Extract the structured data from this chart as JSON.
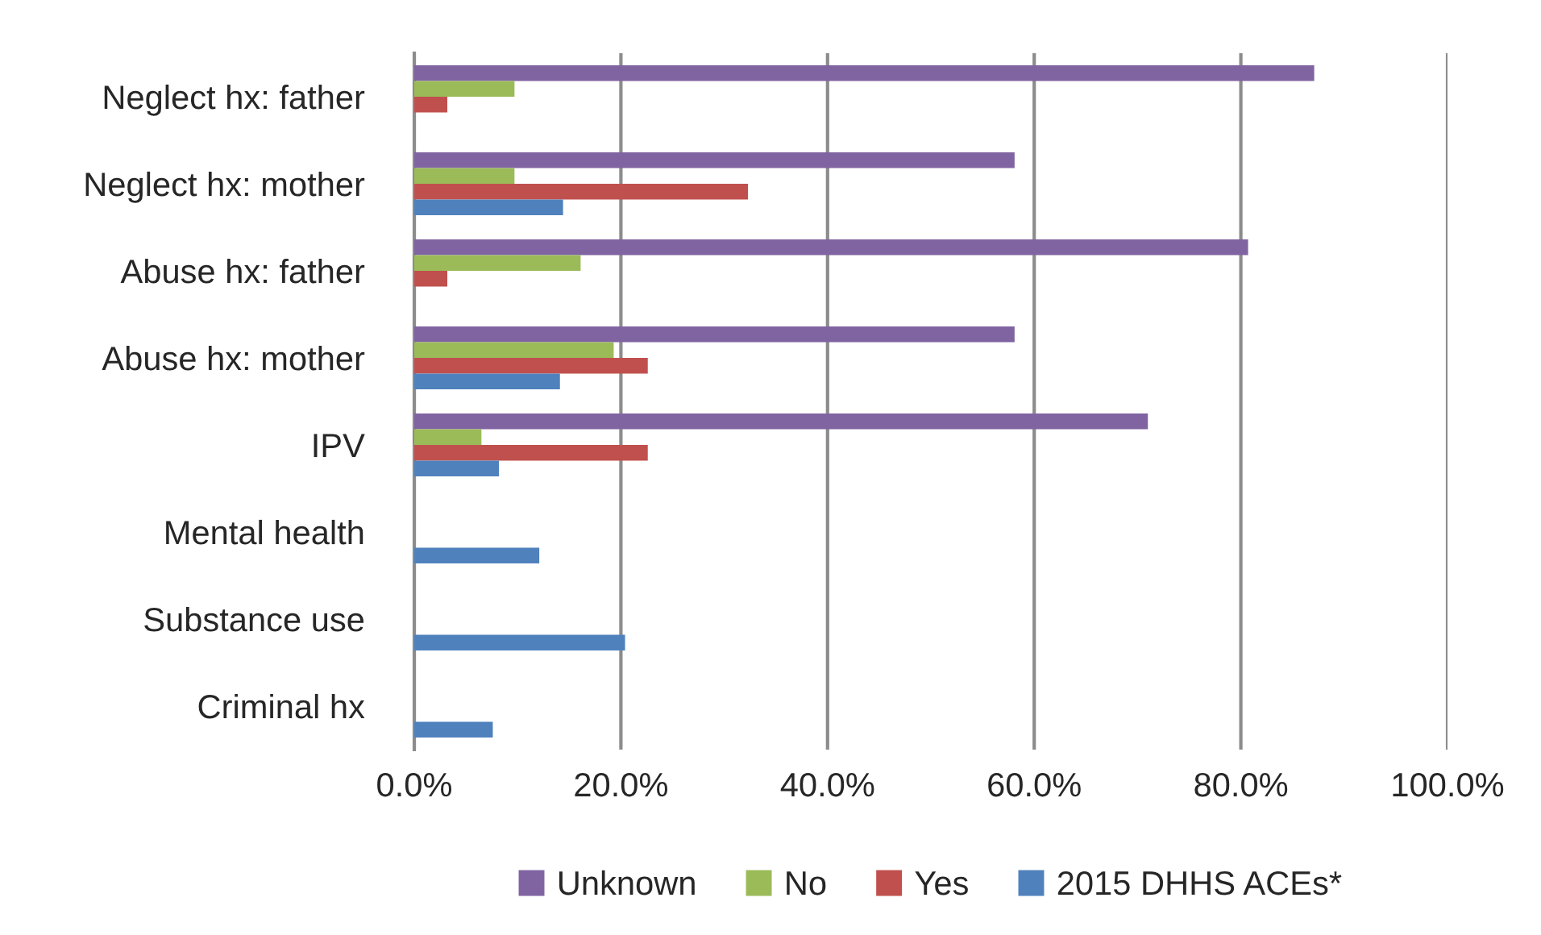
{
  "chart_data": {
    "type": "bar",
    "orientation": "horizontal",
    "categories": [
      "Neglect hx: father",
      "Neglect hx: mother",
      "Abuse hx: father",
      "Abuse hx: mother",
      "IPV",
      "Mental health",
      "Substance use",
      "Criminal hx"
    ],
    "series": [
      {
        "name": "Unknown",
        "color": "#8064a2",
        "values": [
          87.1,
          58.1,
          80.7,
          58.1,
          71.0,
          null,
          null,
          null
        ]
      },
      {
        "name": "No",
        "color": "#9bbb59",
        "values": [
          9.7,
          9.7,
          16.1,
          19.3,
          6.5,
          null,
          null,
          null
        ]
      },
      {
        "name": "Yes",
        "color": "#c0504d",
        "values": [
          3.2,
          32.3,
          3.2,
          22.6,
          22.6,
          null,
          null,
          null
        ]
      },
      {
        "name": "2015 DHHS ACEs*",
        "color": "#4f81bd",
        "values": [
          null,
          14.4,
          null,
          14.1,
          8.2,
          12.1,
          20.4,
          7.6
        ]
      }
    ],
    "xlim": [
      0,
      100
    ],
    "xticks": [
      {
        "value": 0,
        "label": "0.0%"
      },
      {
        "value": 20,
        "label": "20.0%"
      },
      {
        "value": 40,
        "label": "40.0%"
      },
      {
        "value": 60,
        "label": "60.0%"
      },
      {
        "value": 80,
        "label": "80.0%"
      },
      {
        "value": 100,
        "label": "100.0%"
      }
    ],
    "grid": "x",
    "legend": "bottom"
  }
}
